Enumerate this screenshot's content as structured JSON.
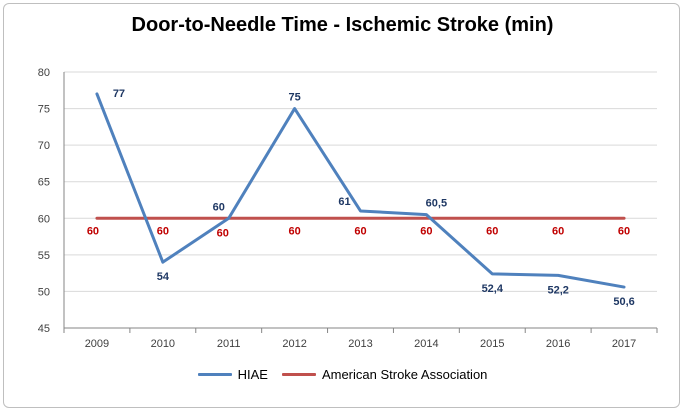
{
  "chart_data": {
    "type": "line",
    "title": "Door-to-Needle Time - Ischemic Stroke (min)",
    "xlabel": "",
    "ylabel": "",
    "categories": [
      "2009",
      "2010",
      "2011",
      "2012",
      "2013",
      "2014",
      "2015",
      "2016",
      "2017"
    ],
    "ylim": [
      45,
      80
    ],
    "yticks": [
      45,
      50,
      55,
      60,
      65,
      70,
      75,
      80
    ],
    "grid": true,
    "legend": "bottom",
    "series": [
      {
        "name": "HIAE",
        "color": "#4f81bd",
        "values": [
          77,
          54,
          60,
          75,
          61,
          60.5,
          52.4,
          52.2,
          50.6
        ],
        "labels": [
          "77",
          "54",
          "60",
          "75",
          "61",
          "60,5",
          "52,4",
          "52,2",
          "50,6"
        ]
      },
      {
        "name": "American Stroke Association",
        "color": "#c0504d",
        "values": [
          60,
          60,
          60,
          60,
          60,
          60,
          60,
          60,
          60
        ],
        "labels": [
          "60",
          "60",
          "60",
          "60",
          "60",
          "60",
          "60",
          "60",
          "60"
        ]
      }
    ]
  }
}
